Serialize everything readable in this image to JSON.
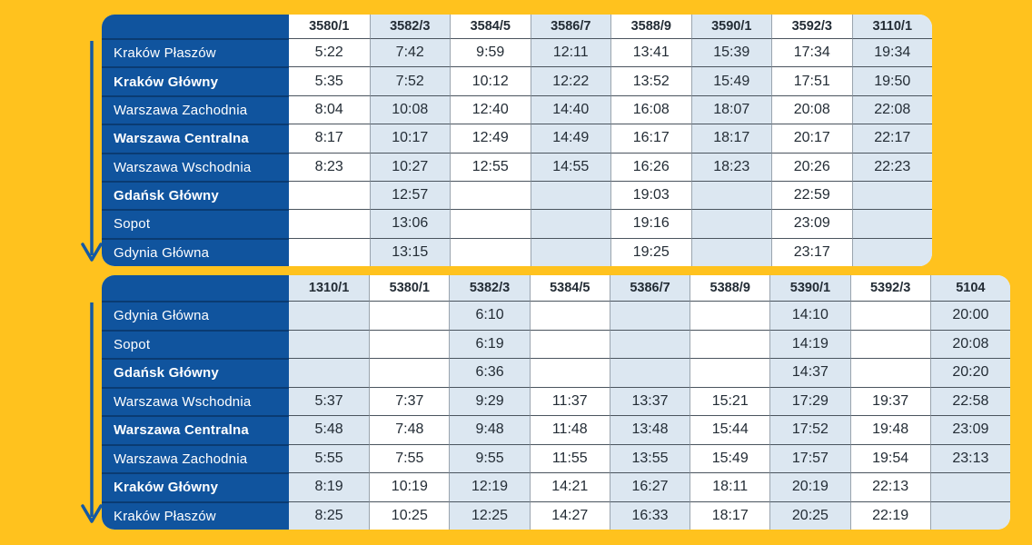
{
  "page": {
    "background_color": "#FFC21E"
  },
  "colors": {
    "station_column": "#10549E",
    "station_separator": "#0A3B72",
    "shaded_column": "#DCE7F1",
    "white_column": "#FFFFFF",
    "grid_dark": "#4A545E",
    "grid_light": "#9AA4AE",
    "cell_text": "#232C35",
    "arrow": "#1459A4"
  },
  "icons": [
    {
      "name": "arrow-down-icon",
      "meaning": "travel direction top-to-bottom, table 1"
    },
    {
      "name": "arrow-down-icon",
      "meaning": "travel direction top-to-bottom, table 2"
    }
  ],
  "tables": [
    {
      "id": "krakow-to-gdynia",
      "first_column_shaded": false,
      "train_numbers": [
        "3580/1",
        "3582/3",
        "3584/5",
        "3586/7",
        "3588/9",
        "3590/1",
        "3592/3",
        "3110/1"
      ],
      "rows": [
        {
          "station": "Kraków Płaszów",
          "bold": false,
          "times": [
            "5:22",
            "7:42",
            "9:59",
            "12:11",
            "13:41",
            "15:39",
            "17:34",
            "19:34"
          ]
        },
        {
          "station": "Kraków Główny",
          "bold": true,
          "times": [
            "5:35",
            "7:52",
            "10:12",
            "12:22",
            "13:52",
            "15:49",
            "17:51",
            "19:50"
          ]
        },
        {
          "station": "Warszawa Zachodnia",
          "bold": false,
          "times": [
            "8:04",
            "10:08",
            "12:40",
            "14:40",
            "16:08",
            "18:07",
            "20:08",
            "22:08"
          ]
        },
        {
          "station": "Warszawa Centralna",
          "bold": true,
          "times": [
            "8:17",
            "10:17",
            "12:49",
            "14:49",
            "16:17",
            "18:17",
            "20:17",
            "22:17"
          ]
        },
        {
          "station": "Warszawa Wschodnia",
          "bold": false,
          "times": [
            "8:23",
            "10:27",
            "12:55",
            "14:55",
            "16:26",
            "18:23",
            "20:26",
            "22:23"
          ]
        },
        {
          "station": "Gdańsk Główny",
          "bold": true,
          "times": [
            "",
            "12:57",
            "",
            "",
            "19:03",
            "",
            "22:59",
            ""
          ]
        },
        {
          "station": "Sopot",
          "bold": false,
          "times": [
            "",
            "13:06",
            "",
            "",
            "19:16",
            "",
            "23:09",
            ""
          ]
        },
        {
          "station": "Gdynia Główna",
          "bold": false,
          "times": [
            "",
            "13:15",
            "",
            "",
            "19:25",
            "",
            "23:17",
            ""
          ]
        }
      ]
    },
    {
      "id": "gdynia-to-krakow",
      "first_column_shaded": true,
      "train_numbers": [
        "1310/1",
        "5380/1",
        "5382/3",
        "5384/5",
        "5386/7",
        "5388/9",
        "5390/1",
        "5392/3",
        "5104"
      ],
      "rows": [
        {
          "station": "Gdynia Główna",
          "bold": false,
          "times": [
            "",
            "",
            "6:10",
            "",
            "",
            "",
            "14:10",
            "",
            "20:00"
          ]
        },
        {
          "station": "Sopot",
          "bold": false,
          "times": [
            "",
            "",
            "6:19",
            "",
            "",
            "",
            "14:19",
            "",
            "20:08"
          ]
        },
        {
          "station": "Gdańsk Główny",
          "bold": true,
          "times": [
            "",
            "",
            "6:36",
            "",
            "",
            "",
            "14:37",
            "",
            "20:20"
          ]
        },
        {
          "station": "Warszawa Wschodnia",
          "bold": false,
          "times": [
            "5:37",
            "7:37",
            "9:29",
            "11:37",
            "13:37",
            "15:21",
            "17:29",
            "19:37",
            "22:58"
          ]
        },
        {
          "station": "Warszawa Centralna",
          "bold": true,
          "times": [
            "5:48",
            "7:48",
            "9:48",
            "11:48",
            "13:48",
            "15:44",
            "17:52",
            "19:48",
            "23:09"
          ]
        },
        {
          "station": "Warszawa Zachodnia",
          "bold": false,
          "times": [
            "5:55",
            "7:55",
            "9:55",
            "11:55",
            "13:55",
            "15:49",
            "17:57",
            "19:54",
            "23:13"
          ]
        },
        {
          "station": "Kraków Główny",
          "bold": true,
          "times": [
            "8:19",
            "10:19",
            "12:19",
            "14:21",
            "16:27",
            "18:11",
            "20:19",
            "22:13",
            ""
          ]
        },
        {
          "station": "Kraków Płaszów",
          "bold": false,
          "times": [
            "8:25",
            "10:25",
            "12:25",
            "14:27",
            "16:33",
            "18:17",
            "20:25",
            "22:19",
            ""
          ]
        }
      ]
    }
  ]
}
